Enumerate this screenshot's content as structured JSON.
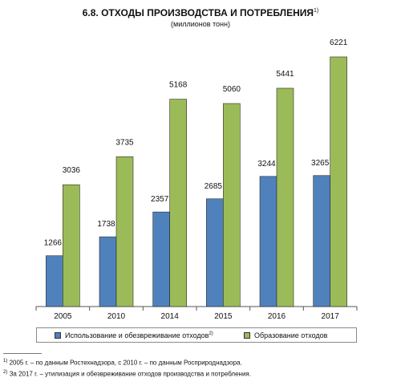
{
  "header": {
    "title": "6.8. ОТХОДЫ ПРОИЗВОДСТВА И ПОТРЕБЛЕНИЯ",
    "title_sup": "1)",
    "subtitle": "(миллионов тонн)"
  },
  "chart_data": {
    "type": "bar",
    "categories": [
      "2005",
      "2010",
      "2014",
      "2015",
      "2016",
      "2017"
    ],
    "series": [
      {
        "name": "Использование и обезвреживание отходов",
        "name_sup": "2)",
        "color": "#4f81bd",
        "values": [
          1266,
          1738,
          2357,
          2685,
          3244,
          3265
        ]
      },
      {
        "name": "Образование отходов",
        "name_sup": "",
        "color": "#9bbb59",
        "values": [
          3036,
          3735,
          5168,
          5060,
          5441,
          6221
        ]
      }
    ],
    "ylim": [
      0,
      6600
    ],
    "grid": false,
    "legend": "bottom"
  },
  "footnotes": [
    {
      "sup": "1)",
      "text": " 2005 г. – по данным Ростехнадзора, с 2010 г. – по данным Росприроднадзора."
    },
    {
      "sup": "2)",
      "text": " За 2017 г. – утилизация и обезвреживание отходов производства и потребления."
    }
  ]
}
